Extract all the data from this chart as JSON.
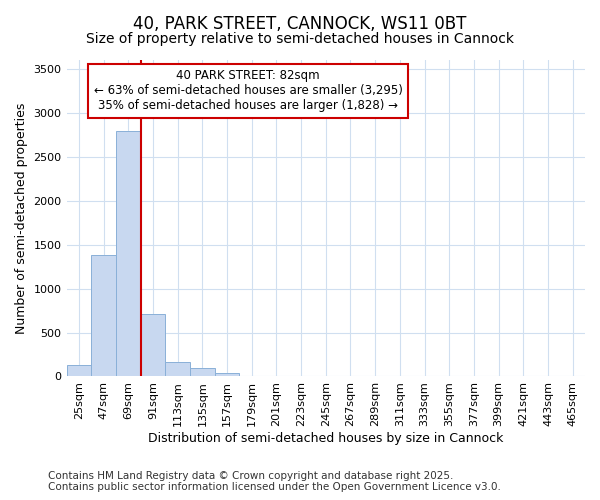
{
  "title": "40, PARK STREET, CANNOCK, WS11 0BT",
  "subtitle": "Size of property relative to semi-detached houses in Cannock",
  "xlabel": "Distribution of semi-detached houses by size in Cannock",
  "ylabel": "Number of semi-detached properties",
  "categories": [
    "25sqm",
    "47sqm",
    "69sqm",
    "91sqm",
    "113sqm",
    "135sqm",
    "157sqm",
    "179sqm",
    "201sqm",
    "223sqm",
    "245sqm",
    "267sqm",
    "289sqm",
    "311sqm",
    "333sqm",
    "355sqm",
    "377sqm",
    "399sqm",
    "421sqm",
    "443sqm",
    "465sqm"
  ],
  "values": [
    130,
    1380,
    2790,
    710,
    160,
    95,
    40,
    5,
    2,
    1,
    0,
    0,
    0,
    0,
    0,
    0,
    0,
    0,
    0,
    0,
    0
  ],
  "bar_color": "#c8d8f0",
  "bar_edge_color": "#8ab0d8",
  "background_color": "#ffffff",
  "grid_color": "#d0dff0",
  "annotation_text": "40 PARK STREET: 82sqm\n← 63% of semi-detached houses are smaller (3,295)\n35% of semi-detached houses are larger (1,828) →",
  "annotation_box_color": "#ffffff",
  "annotation_box_edge_color": "#cc0000",
  "ref_line_color": "#cc0000",
  "ylim": [
    0,
    3600
  ],
  "yticks": [
    0,
    500,
    1000,
    1500,
    2000,
    2500,
    3000,
    3500
  ],
  "footer": "Contains HM Land Registry data © Crown copyright and database right 2025.\nContains public sector information licensed under the Open Government Licence v3.0.",
  "title_fontsize": 12,
  "subtitle_fontsize": 10,
  "xlabel_fontsize": 9,
  "ylabel_fontsize": 9,
  "tick_fontsize": 8,
  "annotation_fontsize": 8.5,
  "footer_fontsize": 7.5
}
